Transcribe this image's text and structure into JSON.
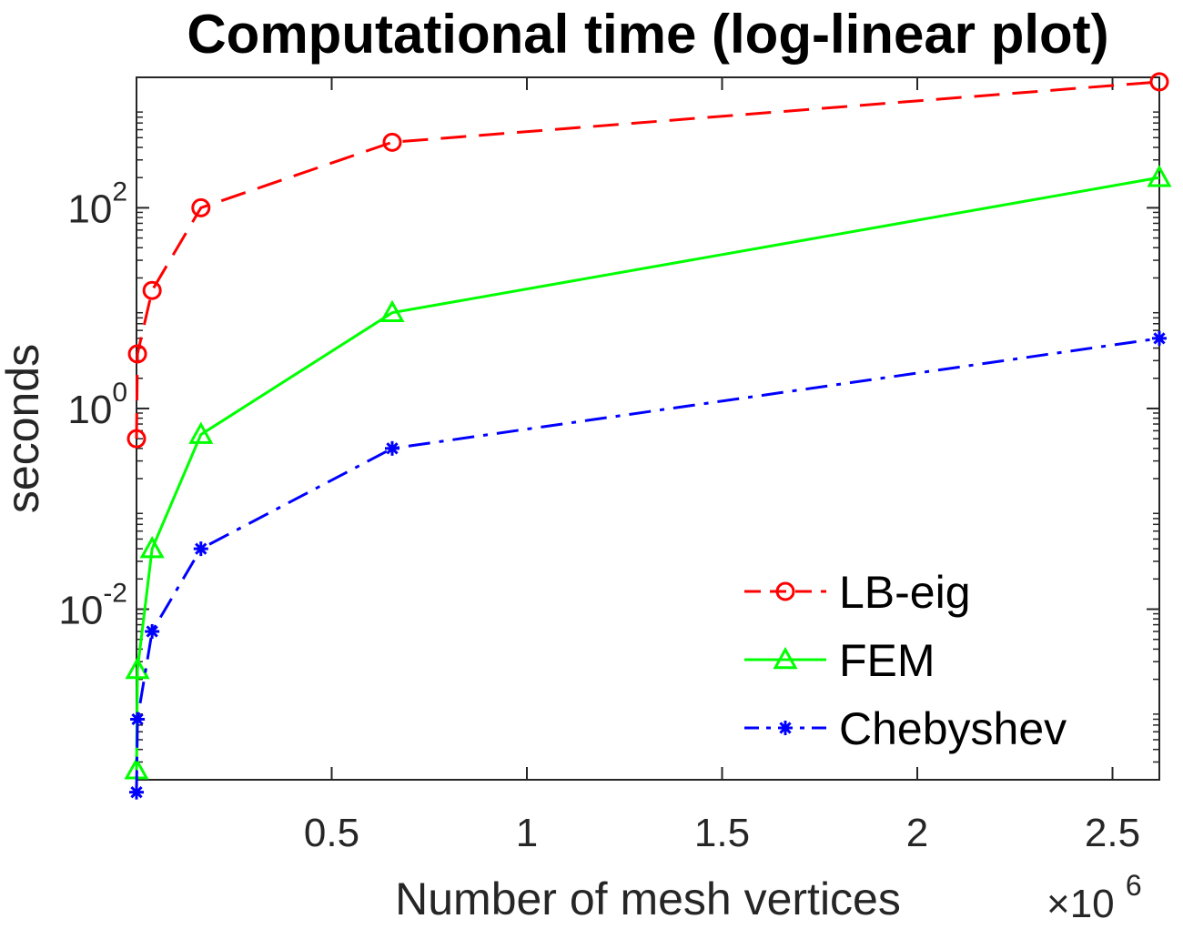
{
  "chart_data": {
    "type": "line",
    "title": "Computational time (log-linear plot)",
    "xlabel": "Number of mesh vertices",
    "x_multiplier_base": "×10",
    "x_multiplier_exp": "6",
    "ylabel": "seconds",
    "yscale": "log",
    "xlim": [
      0,
      2.62
    ],
    "ylim_log10": [
      -3.7,
      3.3
    ],
    "x_ticks": [
      {
        "value": 0.5,
        "label": "0.5"
      },
      {
        "value": 1,
        "label": "1"
      },
      {
        "value": 1.5,
        "label": "1.5"
      },
      {
        "value": 2,
        "label": "2"
      },
      {
        "value": 2.5,
        "label": "2.5"
      }
    ],
    "y_ticks": [
      {
        "value": 0.01,
        "base": "10",
        "exp": "-2"
      },
      {
        "value": 1,
        "base": "10",
        "exp": "0"
      },
      {
        "value": 100,
        "base": "10",
        "exp": "2"
      }
    ],
    "legend_position": "bottom-right",
    "series": [
      {
        "name": "LB-eig",
        "color": "#ff0000",
        "line_style": "dashed",
        "marker": "circle",
        "x": [
          0.0,
          0.0025,
          0.04,
          0.165,
          0.655,
          2.62
        ],
        "y": [
          0.5,
          3.5,
          15,
          100,
          450,
          1800
        ]
      },
      {
        "name": "FEM",
        "color": "#00ff00",
        "line_style": "solid",
        "marker": "triangle",
        "x": [
          0.0,
          0.0025,
          0.04,
          0.165,
          0.655,
          2.62
        ],
        "y": [
          0.00025,
          0.0025,
          0.04,
          0.55,
          9,
          200
        ]
      },
      {
        "name": "Chebyshev",
        "color": "#0000ff",
        "line_style": "dash-dot",
        "marker": "asterisk",
        "x": [
          0.0,
          0.0025,
          0.04,
          0.165,
          0.655,
          2.62
        ],
        "y": [
          0.00015,
          0.0008,
          0.006,
          0.04,
          0.4,
          5
        ]
      }
    ]
  }
}
